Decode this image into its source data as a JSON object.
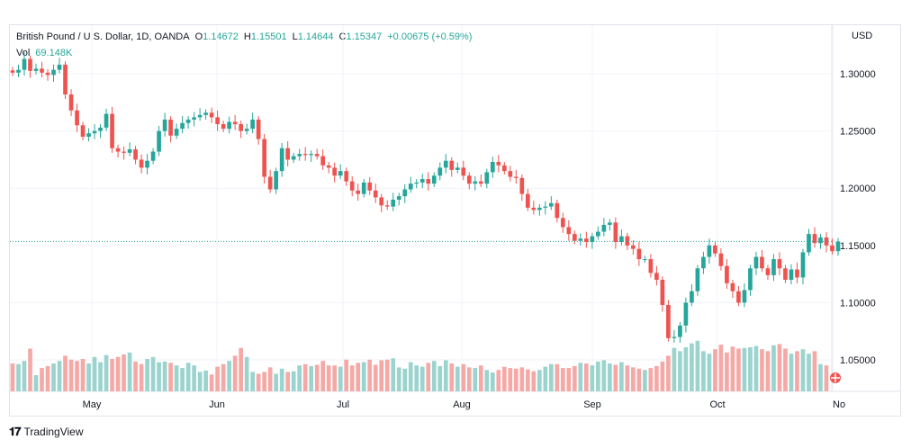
{
  "legend": {
    "symbol": "British Pound / U.S. Dollar, 1D, OANDA",
    "o_label": "O",
    "o_value": "1.14672",
    "h_label": "H",
    "h_value": "1.15501",
    "l_label": "L",
    "l_value": "1.14644",
    "c_label": "C",
    "c_value": "1.15347",
    "change": "+0.00675 (+0.59%)",
    "vol_label": "Vol",
    "vol_value": "69.148K"
  },
  "currency": "USD",
  "footer": {
    "brand": "TradingView"
  },
  "colors": {
    "up": "#26a69a",
    "down": "#ef5350",
    "vol_up": "#9bd3ce",
    "vol_down": "#f5a9a6",
    "grid": "#f0f3fa",
    "last_price": "#26a69a"
  },
  "chart_data": {
    "type": "candlestick",
    "x_labels": [
      "May",
      "Jun",
      "Jul",
      "Aug",
      "Sep",
      "Oct",
      "No"
    ],
    "y_ticks": [
      "1.30000",
      "1.25000",
      "1.20000",
      "1.15000",
      "1.10000",
      "1.05000"
    ],
    "ylim": [
      1.0225,
      1.3425
    ],
    "last_price": 1.1535,
    "closes": [
      1.301,
      1.3035,
      1.313,
      1.3025,
      1.3045,
      1.301,
      1.299,
      1.3035,
      1.308,
      1.282,
      1.268,
      1.255,
      1.245,
      1.248,
      1.25,
      1.253,
      1.265,
      1.235,
      1.232,
      1.231,
      1.234,
      1.225,
      1.218,
      1.224,
      1.232,
      1.25,
      1.26,
      1.246,
      1.252,
      1.257,
      1.26,
      1.262,
      1.264,
      1.266,
      1.262,
      1.256,
      1.252,
      1.258,
      1.256,
      1.25,
      1.252,
      1.26,
      1.243,
      1.21,
      1.199,
      1.215,
      1.235,
      1.225,
      1.228,
      1.23,
      1.229,
      1.23,
      1.228,
      1.22,
      1.218,
      1.211,
      1.215,
      1.206,
      1.198,
      1.195,
      1.205,
      1.198,
      1.192,
      1.185,
      1.184,
      1.19,
      1.193,
      1.199,
      1.204,
      1.205,
      1.208,
      1.204,
      1.211,
      1.218,
      1.224,
      1.216,
      1.218,
      1.211,
      1.204,
      1.206,
      1.204,
      1.214,
      1.223,
      1.22,
      1.215,
      1.21,
      1.209,
      1.195,
      1.183,
      1.181,
      1.183,
      1.184,
      1.187,
      1.174,
      1.166,
      1.16,
      1.154,
      1.156,
      1.153,
      1.158,
      1.162,
      1.168,
      1.17,
      1.153,
      1.158,
      1.15,
      1.147,
      1.138,
      1.138,
      1.126,
      1.12,
      1.098,
      1.069,
      1.07,
      1.08,
      1.1,
      1.11,
      1.13,
      1.14,
      1.15,
      1.143,
      1.132,
      1.117,
      1.11,
      1.1,
      1.111,
      1.13,
      1.14,
      1.13,
      1.124,
      1.138,
      1.13,
      1.12,
      1.129,
      1.122,
      1.144,
      1.16,
      1.152,
      1.157,
      1.15,
      1.145,
      1.1535
    ],
    "volumes": [
      0.43,
      0.42,
      0.47,
      0.66,
      0.25,
      0.36,
      0.39,
      0.43,
      0.47,
      0.55,
      0.49,
      0.47,
      0.5,
      0.43,
      0.53,
      0.45,
      0.56,
      0.5,
      0.53,
      0.57,
      0.6,
      0.46,
      0.42,
      0.5,
      0.53,
      0.45,
      0.46,
      0.44,
      0.4,
      0.36,
      0.44,
      0.4,
      0.3,
      0.32,
      0.26,
      0.38,
      0.42,
      0.47,
      0.55,
      0.67,
      0.53,
      0.3,
      0.27,
      0.3,
      0.37,
      0.27,
      0.35,
      0.3,
      0.31,
      0.4,
      0.42,
      0.39,
      0.41,
      0.47,
      0.4,
      0.4,
      0.38,
      0.49,
      0.4,
      0.44,
      0.45,
      0.49,
      0.41,
      0.48,
      0.49,
      0.51,
      0.37,
      0.35,
      0.45,
      0.4,
      0.38,
      0.44,
      0.47,
      0.39,
      0.48,
      0.43,
      0.38,
      0.42,
      0.37,
      0.36,
      0.4,
      0.33,
      0.29,
      0.33,
      0.38,
      0.36,
      0.35,
      0.37,
      0.34,
      0.31,
      0.33,
      0.38,
      0.42,
      0.42,
      0.36,
      0.36,
      0.39,
      0.44,
      0.43,
      0.4,
      0.46,
      0.48,
      0.43,
      0.41,
      0.45,
      0.4,
      0.37,
      0.35,
      0.33,
      0.36,
      0.39,
      0.46,
      0.55,
      0.67,
      0.62,
      0.68,
      0.74,
      0.78,
      0.62,
      0.58,
      0.65,
      0.72,
      0.6,
      0.69,
      0.66,
      0.67,
      0.68,
      0.7,
      0.65,
      0.62,
      0.71,
      0.73,
      0.66,
      0.58,
      0.62,
      0.65,
      0.58,
      0.62,
      0.42,
      0.4
    ]
  }
}
